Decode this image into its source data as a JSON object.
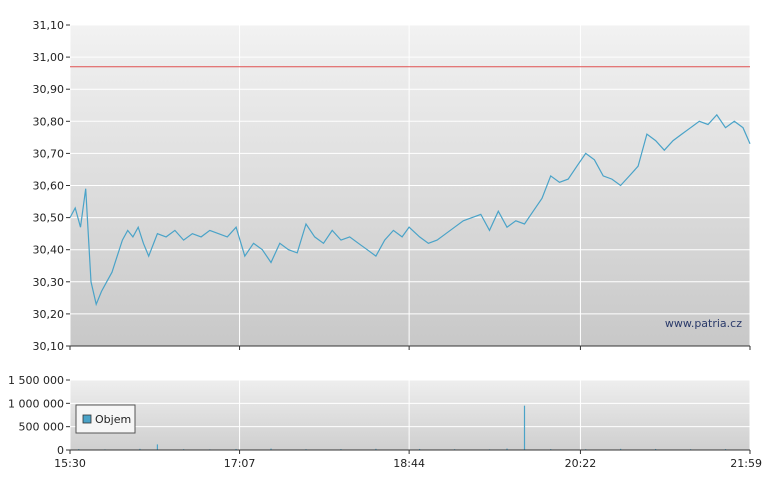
{
  "watermark": "www.patria.cz",
  "legend_label": "Objem",
  "colors": {
    "price_line": "#4aa3c8",
    "reference_line": "#e05050",
    "volume": "#4aa3c8",
    "grid": "#ffffff",
    "axis": "#333333"
  },
  "chart_data": [
    {
      "type": "line",
      "ylim": [
        30.1,
        31.1
      ],
      "y_ticks": [
        "31,10",
        "31,00",
        "30,90",
        "30,80",
        "30,70",
        "30,60",
        "30,50",
        "30,40",
        "30,30",
        "30,20",
        "30,10"
      ],
      "x_ticks": [
        "15:30",
        "17:07",
        "18:44",
        "20:22",
        "21:59"
      ],
      "reference_line": 30.97,
      "grid": true,
      "series": [
        {
          "x": [
            "15:30",
            "15:33",
            "15:36",
            "15:39",
            "15:42",
            "15:45",
            "15:48",
            "15:51",
            "15:54",
            "15:57",
            "16:00",
            "16:03",
            "16:06",
            "16:09",
            "16:12",
            "16:15",
            "16:20",
            "16:25",
            "16:30",
            "16:35",
            "16:40",
            "16:45",
            "16:50",
            "16:55",
            "17:00",
            "17:05",
            "17:10",
            "17:15",
            "17:20",
            "17:25",
            "17:30",
            "17:35",
            "17:40",
            "17:45",
            "17:50",
            "17:55",
            "18:00",
            "18:05",
            "18:10",
            "18:15",
            "18:20",
            "18:25",
            "18:30",
            "18:35",
            "18:40",
            "18:44",
            "18:50",
            "18:55",
            "19:00",
            "19:05",
            "19:10",
            "19:15",
            "19:20",
            "19:25",
            "19:30",
            "19:35",
            "19:40",
            "19:45",
            "19:50",
            "19:55",
            "20:00",
            "20:05",
            "20:10",
            "20:15",
            "20:20",
            "20:25",
            "20:30",
            "20:35",
            "20:40",
            "20:45",
            "20:50",
            "20:55",
            "21:00",
            "21:05",
            "21:10",
            "21:15",
            "21:20",
            "21:25",
            "21:30",
            "21:35",
            "21:40",
            "21:45",
            "21:50",
            "21:55",
            "21:59"
          ],
          "values": [
            30.5,
            30.53,
            30.47,
            30.59,
            30.3,
            30.23,
            30.27,
            30.3,
            30.33,
            30.38,
            30.43,
            30.46,
            30.44,
            30.47,
            30.42,
            30.38,
            30.45,
            30.44,
            30.46,
            30.43,
            30.45,
            30.44,
            30.46,
            30.45,
            30.44,
            30.47,
            30.38,
            30.42,
            30.4,
            30.36,
            30.42,
            30.4,
            30.39,
            30.48,
            30.44,
            30.42,
            30.46,
            30.43,
            30.44,
            30.42,
            30.4,
            30.38,
            30.43,
            30.46,
            30.44,
            30.47,
            30.44,
            30.42,
            30.43,
            30.45,
            30.47,
            30.49,
            30.5,
            30.51,
            30.46,
            30.52,
            30.47,
            30.49,
            30.48,
            30.52,
            30.56,
            30.63,
            30.61,
            30.62,
            30.66,
            30.7,
            30.68,
            30.63,
            30.62,
            30.6,
            30.63,
            30.66,
            30.76,
            30.74,
            30.71,
            30.74,
            30.76,
            30.78,
            30.8,
            30.79,
            30.82,
            30.78,
            30.8,
            30.78,
            30.73
          ]
        }
      ]
    },
    {
      "type": "bar",
      "ylim": [
        0,
        1500000
      ],
      "y_ticks": [
        "1 500 000",
        "1 000 000",
        "500 000",
        "0"
      ],
      "x_ticks": [
        "15:30",
        "17:07",
        "18:44",
        "20:22",
        "21:59"
      ],
      "grid": true,
      "series": [
        {
          "name": "Objem",
          "x": [
            "15:35",
            "15:50",
            "16:10",
            "16:20",
            "16:35",
            "16:50",
            "17:05",
            "17:25",
            "17:45",
            "18:05",
            "18:25",
            "18:50",
            "19:10",
            "19:30",
            "19:40",
            "19:50",
            "20:05",
            "20:25",
            "20:45",
            "21:05",
            "21:25",
            "21:45"
          ],
          "values": [
            20000,
            15000,
            25000,
            120000,
            18000,
            15000,
            22000,
            30000,
            18000,
            20000,
            25000,
            22000,
            18000,
            15000,
            30000,
            950000,
            20000,
            18000,
            25000,
            22000,
            18000,
            20000
          ]
        }
      ]
    }
  ]
}
